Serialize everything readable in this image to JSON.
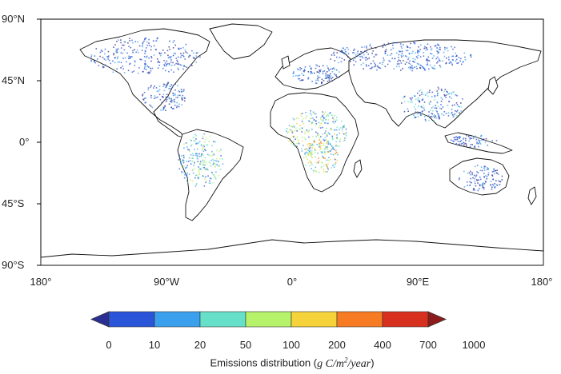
{
  "map": {
    "lat_ticks": [
      {
        "label": "90°N",
        "value": 90
      },
      {
        "label": "45°N",
        "value": 45
      },
      {
        "label": "0°",
        "value": 0
      },
      {
        "label": "45°S",
        "value": -45
      },
      {
        "label": "90°S",
        "value": -90
      }
    ],
    "lon_ticks": [
      {
        "label": "180°",
        "value": -180
      },
      {
        "label": "90°W",
        "value": -90
      },
      {
        "label": "0°",
        "value": 0
      },
      {
        "label": "90°E",
        "value": 90
      },
      {
        "label": "180°",
        "value": 180
      }
    ],
    "colors": {
      "land_outline": "#111111",
      "frame": "#000000"
    }
  },
  "colorbar": {
    "ticks": [
      "0",
      "10",
      "20",
      "50",
      "100",
      "200",
      "400",
      "700",
      "1000"
    ],
    "colors": [
      "#2b2f92",
      "#2a55d8",
      "#3aa0ee",
      "#66e0c8",
      "#b6f26a",
      "#f6d33a",
      "#f77b22",
      "#d7301f",
      "#8e1b1b"
    ],
    "title_prefix": "Emissions distribution (",
    "title_units_main": "g C/m",
    "title_units_sup": "2",
    "title_units_tail": "/year",
    "title_suffix": ")"
  }
}
